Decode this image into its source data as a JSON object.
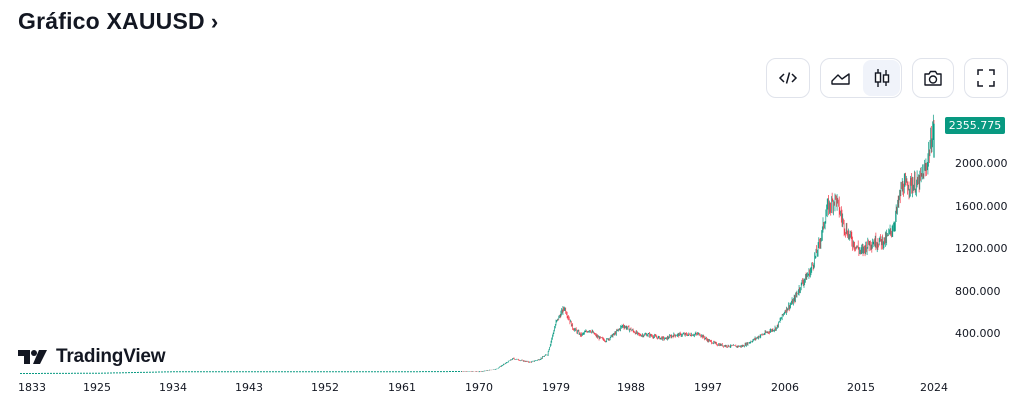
{
  "header": {
    "title": "Gráfico XAUUSD",
    "chevron": "›"
  },
  "toolbar": {
    "buttons": [
      {
        "name": "embed-code-icon"
      },
      {
        "name": "area-chart-icon"
      },
      {
        "name": "candlestick-icon",
        "active": true
      },
      {
        "name": "camera-icon"
      },
      {
        "name": "fullscreen-icon"
      }
    ]
  },
  "brand": {
    "wordmark": "TradingView"
  },
  "chart_data": {
    "type": "candlestick",
    "symbol": "XAUUSD",
    "last_price_label": "2355.775",
    "up_color": "#089981",
    "down_color": "#f23645",
    "y_ticks": [
      "400.000",
      "800.000",
      "1200.000",
      "1600.000",
      "2000.000"
    ],
    "x_ticks": [
      "1833",
      "1925",
      "1934",
      "1943",
      "1952",
      "1961",
      "1970",
      "1979",
      "1988",
      "1997",
      "2006",
      "2015",
      "2024"
    ],
    "ylim": [
      0,
      2400
    ],
    "x": [
      1833,
      1925,
      1934,
      1943,
      1952,
      1961,
      1968,
      1970,
      1972,
      1974,
      1975,
      1976,
      1977,
      1978,
      1979,
      1980,
      1981,
      1982,
      1983,
      1984,
      1985,
      1986,
      1987,
      1988,
      1989,
      1990,
      1991,
      1992,
      1993,
      1994,
      1995,
      1996,
      1997,
      1998,
      1999,
      2000,
      2001,
      2002,
      2003,
      2004,
      2005,
      2006,
      2007,
      2008,
      2009,
      2010,
      2011,
      2012,
      2013,
      2014,
      2015,
      2016,
      2017,
      2018,
      2019,
      2020,
      2021,
      2022,
      2023,
      2024
    ],
    "y": [
      19,
      21,
      35,
      35,
      35,
      35,
      38,
      36,
      60,
      160,
      140,
      125,
      150,
      200,
      500,
      640,
      450,
      380,
      430,
      360,
      330,
      390,
      470,
      430,
      380,
      385,
      360,
      345,
      380,
      385,
      385,
      390,
      330,
      295,
      280,
      275,
      275,
      320,
      370,
      410,
      450,
      610,
      700,
      870,
      980,
      1220,
      1570,
      1670,
      1410,
      1260,
      1160,
      1250,
      1260,
      1270,
      1400,
      1770,
      1800,
      1800,
      1950,
      2355
    ]
  }
}
